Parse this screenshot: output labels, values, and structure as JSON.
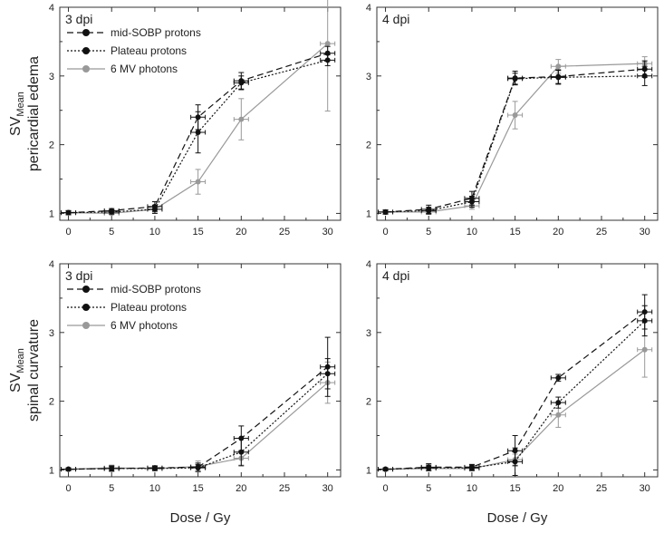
{
  "figure": {
    "x_axis_label": "Dose / Gy",
    "row_labels": [
      {
        "sv": "SV",
        "sub": "Mean",
        "line2": "pericardial edema"
      },
      {
        "sv": "SV",
        "sub": "Mean",
        "line2": "spinal curvature"
      }
    ]
  },
  "legend_entries": [
    "mid-SOBP protons",
    "Plateau protons",
    "6 MV photons"
  ],
  "colors": {
    "mid_sobp": "#111111",
    "plateau": "#111111",
    "photons": "#999999",
    "axis": "#333333"
  },
  "chart_data": [
    {
      "type": "line",
      "title": "3 dpi",
      "row": 0,
      "col": 0,
      "xlim": [
        -1,
        31.5
      ],
      "ylim": [
        0.9,
        4
      ],
      "x_ticks": [
        0,
        5,
        10,
        15,
        20,
        25,
        30
      ],
      "y_ticks": [
        1,
        2,
        3,
        4
      ],
      "legend": true,
      "series": [
        {
          "name": "mid-SOBP protons",
          "x": [
            0,
            5,
            10,
            15,
            20,
            30
          ],
          "y": [
            1.01,
            1.04,
            1.1,
            2.4,
            2.93,
            3.33
          ],
          "err": [
            0.03,
            0.03,
            0.07,
            0.18,
            0.12,
            0.1
          ]
        },
        {
          "name": "Plateau protons",
          "x": [
            0,
            5,
            10,
            15,
            20,
            30
          ],
          "y": [
            1.01,
            1.02,
            1.06,
            2.18,
            2.9,
            3.23
          ],
          "err": [
            0.03,
            0.03,
            0.06,
            0.3,
            0.1,
            0.08
          ]
        },
        {
          "name": "6 MV photons",
          "x": [
            0,
            5,
            10,
            15,
            20,
            30
          ],
          "y": [
            1.01,
            1.0,
            1.06,
            1.46,
            2.37,
            3.47
          ],
          "err": [
            0.02,
            0.02,
            0.04,
            0.18,
            0.3,
            0.98
          ]
        }
      ]
    },
    {
      "type": "line",
      "title": "4 dpi",
      "row": 0,
      "col": 1,
      "xlim": [
        -1,
        31.5
      ],
      "ylim": [
        0.9,
        4
      ],
      "x_ticks": [
        0,
        5,
        10,
        15,
        20,
        25,
        30
      ],
      "y_ticks": [
        1,
        2,
        3,
        4
      ],
      "legend": false,
      "series": [
        {
          "name": "mid-SOBP protons",
          "x": [
            0,
            5,
            10,
            15,
            20,
            30
          ],
          "y": [
            1.02,
            1.06,
            1.22,
            2.97,
            2.99,
            3.1
          ],
          "err": [
            0.03,
            0.06,
            0.1,
            0.1,
            0.1,
            0.12
          ]
        },
        {
          "name": "Plateau protons",
          "x": [
            0,
            5,
            10,
            15,
            20,
            30
          ],
          "y": [
            1.02,
            1.04,
            1.17,
            2.96,
            2.98,
            3.0
          ],
          "err": [
            0.03,
            0.05,
            0.08,
            0.08,
            0.1,
            0.14
          ]
        },
        {
          "name": "6 MV photons",
          "x": [
            0,
            5,
            10,
            15,
            20,
            30
          ],
          "y": [
            1.02,
            1.02,
            1.11,
            2.43,
            3.14,
            3.18
          ],
          "err": [
            0.02,
            0.03,
            0.05,
            0.2,
            0.1,
            0.1
          ]
        }
      ]
    },
    {
      "type": "line",
      "title": "3 dpi",
      "row": 1,
      "col": 0,
      "xlim": [
        -1,
        31.5
      ],
      "ylim": [
        0.9,
        4
      ],
      "x_ticks": [
        0,
        5,
        10,
        15,
        20,
        25,
        30
      ],
      "y_ticks": [
        1,
        2,
        3,
        4
      ],
      "legend": true,
      "series": [
        {
          "name": "mid-SOBP protons",
          "x": [
            0,
            5,
            10,
            15,
            20,
            30
          ],
          "y": [
            1.01,
            1.02,
            1.03,
            1.04,
            1.46,
            2.5
          ],
          "err": [
            0.02,
            0.04,
            0.03,
            0.06,
            0.18,
            0.43
          ]
        },
        {
          "name": "Plateau protons",
          "x": [
            0,
            5,
            10,
            15,
            20,
            30
          ],
          "y": [
            1.01,
            1.02,
            1.02,
            1.03,
            1.26,
            2.4
          ],
          "err": [
            0.02,
            0.03,
            0.03,
            0.05,
            0.2,
            0.22
          ]
        },
        {
          "name": "6 MV photons",
          "x": [
            0,
            5,
            10,
            15,
            20,
            30
          ],
          "y": [
            1.01,
            1.03,
            1.02,
            1.05,
            1.17,
            2.27
          ],
          "err": [
            0.02,
            0.04,
            0.03,
            0.08,
            0.1,
            0.3
          ]
        }
      ]
    },
    {
      "type": "line",
      "title": "4 dpi",
      "row": 1,
      "col": 1,
      "xlim": [
        -1,
        31.5
      ],
      "ylim": [
        0.9,
        4
      ],
      "x_ticks": [
        0,
        5,
        10,
        15,
        20,
        25,
        30
      ],
      "y_ticks": [
        1,
        2,
        3,
        4
      ],
      "legend": false,
      "series": [
        {
          "name": "mid-SOBP protons",
          "x": [
            0,
            5,
            10,
            15,
            20,
            30
          ],
          "y": [
            1.01,
            1.04,
            1.04,
            1.28,
            2.34,
            3.3
          ],
          "err": [
            0.02,
            0.05,
            0.04,
            0.22,
            0.05,
            0.25
          ]
        },
        {
          "name": "Plateau protons",
          "x": [
            0,
            5,
            10,
            15,
            20,
            30
          ],
          "y": [
            1.01,
            1.03,
            1.03,
            1.12,
            1.98,
            3.17
          ],
          "err": [
            0.02,
            0.04,
            0.04,
            0.2,
            0.08,
            0.22
          ]
        },
        {
          "name": "6 MV photons",
          "x": [
            0,
            5,
            10,
            15,
            20,
            30
          ],
          "y": [
            1.01,
            1.02,
            1.02,
            1.15,
            1.8,
            2.75
          ],
          "err": [
            0.02,
            0.03,
            0.03,
            0.08,
            0.18,
            0.4
          ]
        }
      ]
    }
  ]
}
